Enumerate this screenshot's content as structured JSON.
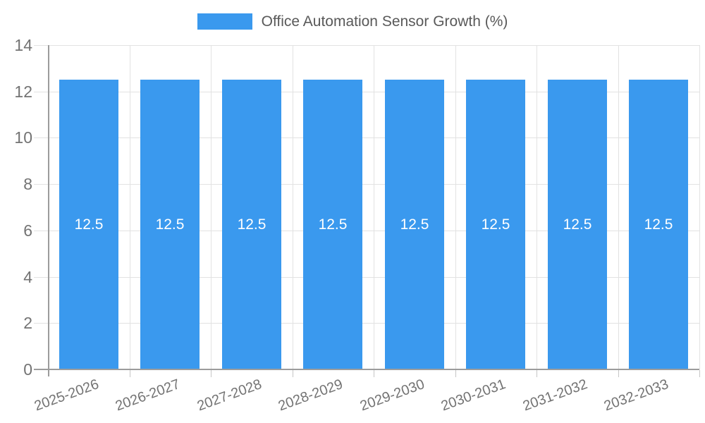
{
  "legend": {
    "items": [
      {
        "label": "Office Automation Sensor Growth (%)",
        "swatch_color": "#3a99ee"
      }
    ]
  },
  "chart_data": {
    "type": "bar",
    "title": "Office Automation Sensor Growth (%)",
    "categories": [
      "2025-2026",
      "2026-2027",
      "2027-2028",
      "2028-2029",
      "2029-2030",
      "2030-2031",
      "2031-2032",
      "2032-2033"
    ],
    "series": [
      {
        "name": "Office Automation Sensor Growth (%)",
        "values": [
          12.5,
          12.5,
          12.5,
          12.5,
          12.5,
          12.5,
          12.5,
          12.5
        ]
      }
    ],
    "bar_value_labels": [
      "12.5",
      "12.5",
      "12.5",
      "12.5",
      "12.5",
      "12.5",
      "12.5",
      "12.5"
    ],
    "xlabel": "",
    "ylabel": "",
    "ylim": [
      0,
      14
    ],
    "yticks": [
      0,
      2,
      4,
      6,
      8,
      10,
      12,
      14
    ],
    "grid": true,
    "legend_position": "top"
  },
  "colors": {
    "bar": "#3a99ee",
    "grid": "#e2e2e2",
    "axis": "#9c9c9c",
    "x_tick_mark": "#c6c6c6",
    "tick_text": "#737373",
    "legend_text": "#595959",
    "value_text": "#ffffff",
    "background": "#ffffff"
  }
}
